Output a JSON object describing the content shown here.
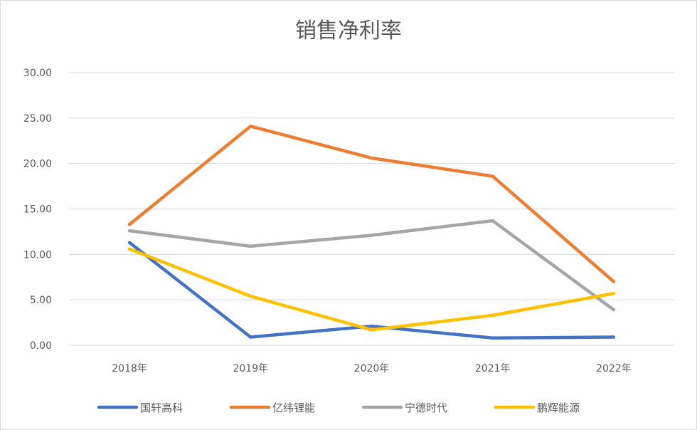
{
  "chart_data": {
    "type": "line",
    "title": "销售净利率",
    "xlabel": "",
    "ylabel": "",
    "categories": [
      "2018年",
      "2019年",
      "2020年",
      "2021年",
      "2022年"
    ],
    "ylim": [
      0,
      30
    ],
    "yticks": [
      "0.00",
      "5.00",
      "10.00",
      "15.00",
      "20.00",
      "25.00",
      "30.00"
    ],
    "grid": true,
    "legend_position": "bottom",
    "series": [
      {
        "name": "国轩高科",
        "color": "#4472c4",
        "values": [
          11.3,
          0.9,
          2.1,
          0.8,
          0.9
        ]
      },
      {
        "name": "亿纬锂能",
        "color": "#ed7d31",
        "values": [
          13.3,
          24.1,
          20.6,
          18.6,
          7.0
        ]
      },
      {
        "name": "宁德时代",
        "color": "#a5a5a5",
        "values": [
          12.6,
          10.9,
          12.1,
          13.7,
          3.9
        ]
      },
      {
        "name": "鹏辉能源",
        "color": "#ffc000",
        "values": [
          10.6,
          5.4,
          1.7,
          3.3,
          5.7
        ]
      }
    ]
  }
}
